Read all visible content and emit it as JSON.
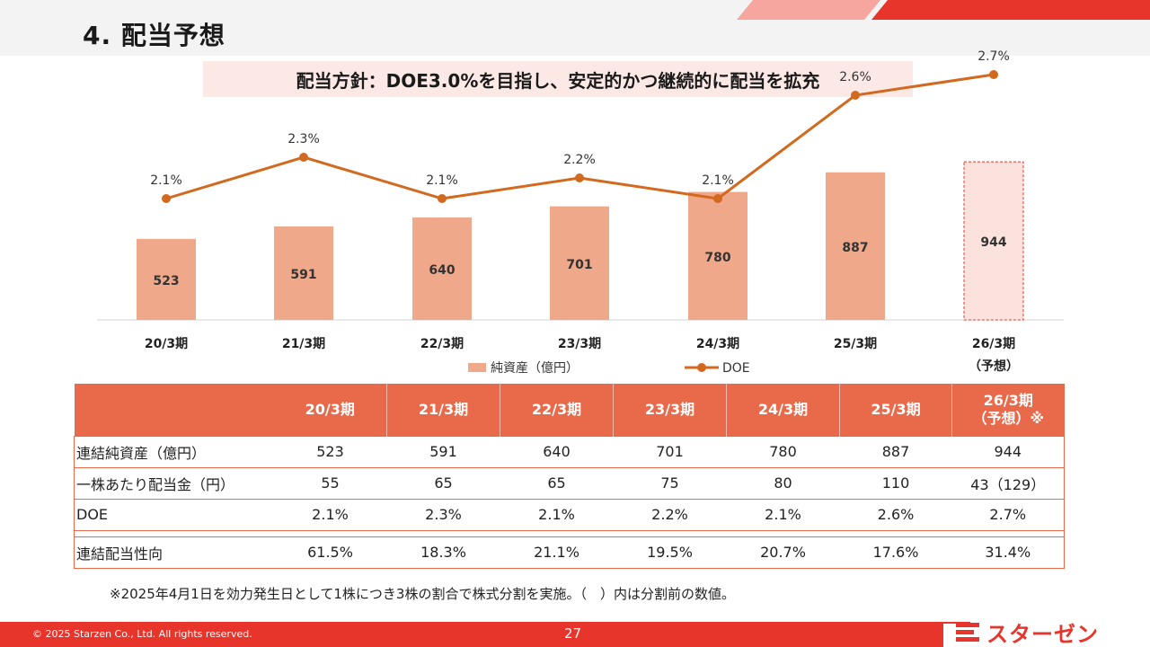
{
  "header": {
    "title": "4.  配当予想"
  },
  "policy": {
    "text": "配当方針：DOE3.0%を目指し、安定的かつ継続的に配当を拡充"
  },
  "chart_data": {
    "type": "bar",
    "categories": [
      "20/3期",
      "21/3期",
      "22/3期",
      "23/3期",
      "24/3期",
      "25/3期",
      "26/3期"
    ],
    "category_sub": [
      "",
      "",
      "",
      "",
      "",
      "",
      "（予想）"
    ],
    "series": [
      {
        "name": "純資産（億円）",
        "type": "bar",
        "values": [
          523,
          591,
          640,
          701,
          780,
          887,
          944
        ],
        "forecast_index": 6,
        "color": "#f0a88a",
        "forecast_color": "#fbe2dc"
      },
      {
        "name": "DOE",
        "type": "line",
        "values": [
          2.1,
          2.3,
          2.1,
          2.2,
          2.1,
          2.6,
          2.7
        ],
        "labels": [
          "2.1%",
          "2.3%",
          "2.1%",
          "2.2%",
          "2.1%",
          "2.6%",
          "2.7%"
        ],
        "color": "#d2691e"
      }
    ],
    "legend": "bottom-center"
  },
  "table": {
    "headers": [
      "20/3期",
      "21/3期",
      "22/3期",
      "23/3期",
      "24/3期",
      "25/3期"
    ],
    "last_header_line1": "26/3期",
    "last_header_line2": "（予想）※",
    "rows": [
      {
        "label": "連結純資産（億円）",
        "values": [
          "523",
          "591",
          "640",
          "701",
          "780",
          "887",
          "944"
        ]
      },
      {
        "label": "一株あたり配当金（円）",
        "values": [
          "55",
          "65",
          "65",
          "75",
          "80",
          "110",
          "43（129）"
        ]
      },
      {
        "label": "DOE",
        "values": [
          "2.1%",
          "2.3%",
          "2.1%",
          "2.2%",
          "2.1%",
          "2.6%",
          "2.7%"
        ]
      },
      {
        "label": "連結配当性向",
        "values": [
          "61.5%",
          "18.3%",
          "21.1%",
          "19.5%",
          "20.7%",
          "17.6%",
          "31.4%"
        ]
      }
    ]
  },
  "footnote": "※2025年4月1日を効力発生日として1株につき3株の割合で株式分割を実施。（　）内は分割前の数値。",
  "footer": {
    "copyright": "© 2025 Starzen Co., Ltd. All rights reserved.",
    "page": "27",
    "logo": "スターゼン"
  },
  "colors": {
    "accent": "#e8352c",
    "table_header": "#e96a4a"
  }
}
